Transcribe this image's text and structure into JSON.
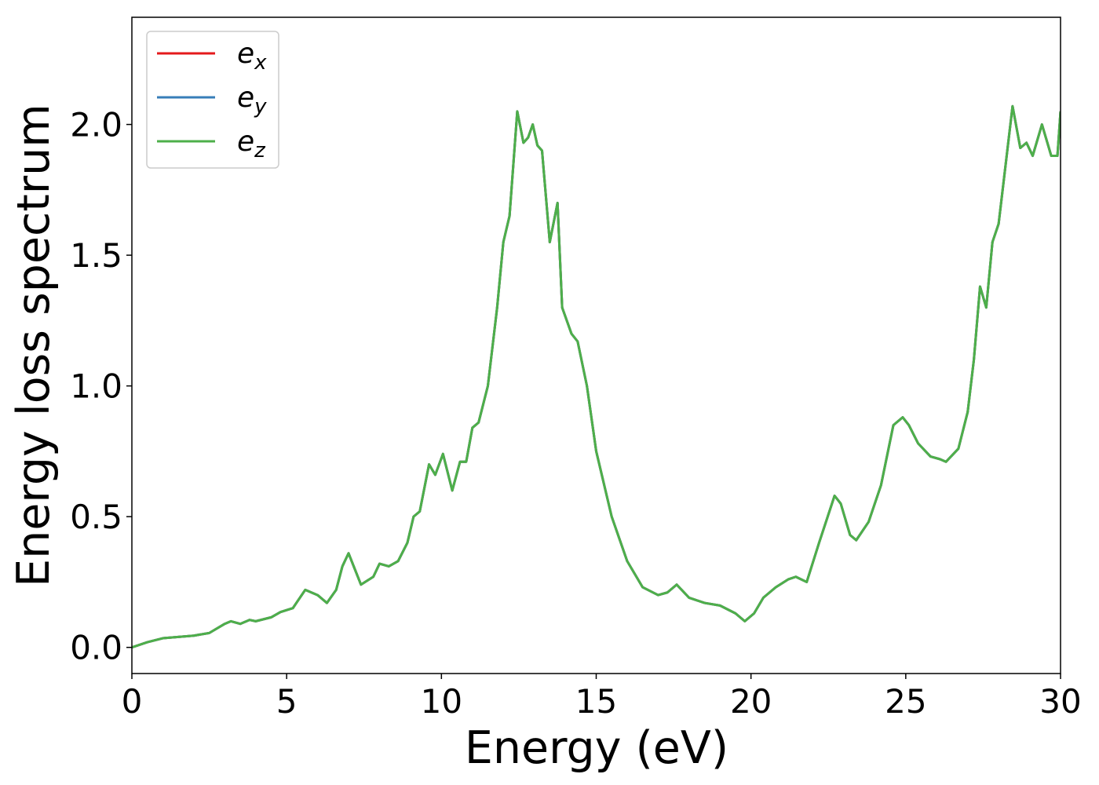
{
  "chart_data": {
    "type": "line",
    "xlabel": "Energy (eV)",
    "ylabel": "Energy loss spectrum",
    "x": [
      0,
      0.5,
      1,
      1.5,
      2,
      2.5,
      3,
      3.2,
      3.5,
      3.8,
      4,
      4.5,
      4.8,
      5.2,
      5.6,
      6,
      6.3,
      6.6,
      6.8,
      7,
      7.2,
      7.4,
      7.8,
      8,
      8.3,
      8.6,
      8.9,
      9.1,
      9.3,
      9.6,
      9.8,
      10.05,
      10.35,
      10.6,
      10.8,
      11,
      11.2,
      11.5,
      11.8,
      12,
      12.2,
      12.45,
      12.65,
      12.8,
      12.95,
      13.1,
      13.25,
      13.5,
      13.75,
      13.9,
      14.2,
      14.4,
      14.7,
      15,
      15.5,
      16,
      16.5,
      17,
      17.3,
      17.6,
      18,
      18.5,
      19,
      19.5,
      19.8,
      20.1,
      20.4,
      20.8,
      21.2,
      21.45,
      21.8,
      22.2,
      22.7,
      22.9,
      23.2,
      23.4,
      23.8,
      24.2,
      24.6,
      24.9,
      25.1,
      25.4,
      25.8,
      26.1,
      26.3,
      26.7,
      27,
      27.2,
      27.4,
      27.6,
      27.8,
      28,
      28.45,
      28.7,
      28.9,
      29.1,
      29.4,
      29.7,
      29.9,
      30
    ],
    "series": [
      {
        "name": "e_x",
        "color": "#e41a1c",
        "values": [
          0,
          0.02,
          0.035,
          0.04,
          0.045,
          0.055,
          0.09,
          0.1,
          0.09,
          0.105,
          0.1,
          0.115,
          0.135,
          0.15,
          0.22,
          0.2,
          0.17,
          0.22,
          0.31,
          0.36,
          0.3,
          0.24,
          0.27,
          0.32,
          0.31,
          0.33,
          0.4,
          0.5,
          0.52,
          0.7,
          0.66,
          0.74,
          0.6,
          0.71,
          0.71,
          0.84,
          0.86,
          1.0,
          1.3,
          1.55,
          1.65,
          2.05,
          1.93,
          1.95,
          2.0,
          1.92,
          1.9,
          1.55,
          1.7,
          1.3,
          1.2,
          1.17,
          1.0,
          0.75,
          0.5,
          0.33,
          0.23,
          0.2,
          0.21,
          0.24,
          0.19,
          0.17,
          0.16,
          0.13,
          0.1,
          0.13,
          0.19,
          0.23,
          0.26,
          0.27,
          0.25,
          0.4,
          0.58,
          0.55,
          0.43,
          0.41,
          0.48,
          0.62,
          0.85,
          0.88,
          0.85,
          0.78,
          0.73,
          0.72,
          0.71,
          0.76,
          0.9,
          1.1,
          1.38,
          1.3,
          1.55,
          1.62,
          2.07,
          1.91,
          1.93,
          1.88,
          2.0,
          1.88,
          1.88,
          2.05
        ]
      },
      {
        "name": "e_y",
        "color": "#377eb8",
        "values": [
          0,
          0.02,
          0.035,
          0.04,
          0.045,
          0.055,
          0.09,
          0.1,
          0.09,
          0.105,
          0.1,
          0.115,
          0.135,
          0.15,
          0.22,
          0.2,
          0.17,
          0.22,
          0.31,
          0.36,
          0.3,
          0.24,
          0.27,
          0.32,
          0.31,
          0.33,
          0.4,
          0.5,
          0.52,
          0.7,
          0.66,
          0.74,
          0.6,
          0.71,
          0.71,
          0.84,
          0.86,
          1.0,
          1.3,
          1.55,
          1.65,
          2.05,
          1.93,
          1.95,
          2.0,
          1.92,
          1.9,
          1.55,
          1.7,
          1.3,
          1.2,
          1.17,
          1.0,
          0.75,
          0.5,
          0.33,
          0.23,
          0.2,
          0.21,
          0.24,
          0.19,
          0.17,
          0.16,
          0.13,
          0.1,
          0.13,
          0.19,
          0.23,
          0.26,
          0.27,
          0.25,
          0.4,
          0.58,
          0.55,
          0.43,
          0.41,
          0.48,
          0.62,
          0.85,
          0.88,
          0.85,
          0.78,
          0.73,
          0.72,
          0.71,
          0.76,
          0.9,
          1.1,
          1.38,
          1.3,
          1.55,
          1.62,
          2.07,
          1.91,
          1.93,
          1.88,
          2.0,
          1.88,
          1.88,
          2.05
        ]
      },
      {
        "name": "e_z",
        "color": "#4daf4a",
        "values": [
          0,
          0.02,
          0.035,
          0.04,
          0.045,
          0.055,
          0.09,
          0.1,
          0.09,
          0.105,
          0.1,
          0.115,
          0.135,
          0.15,
          0.22,
          0.2,
          0.17,
          0.22,
          0.31,
          0.36,
          0.3,
          0.24,
          0.27,
          0.32,
          0.31,
          0.33,
          0.4,
          0.5,
          0.52,
          0.7,
          0.66,
          0.74,
          0.6,
          0.71,
          0.71,
          0.84,
          0.86,
          1.0,
          1.3,
          1.55,
          1.65,
          2.05,
          1.93,
          1.95,
          2.0,
          1.92,
          1.9,
          1.55,
          1.7,
          1.3,
          1.2,
          1.17,
          1.0,
          0.75,
          0.5,
          0.33,
          0.23,
          0.2,
          0.21,
          0.24,
          0.19,
          0.17,
          0.16,
          0.13,
          0.1,
          0.13,
          0.19,
          0.23,
          0.26,
          0.27,
          0.25,
          0.4,
          0.58,
          0.55,
          0.43,
          0.41,
          0.48,
          0.62,
          0.85,
          0.88,
          0.85,
          0.78,
          0.73,
          0.72,
          0.71,
          0.76,
          0.9,
          1.1,
          1.38,
          1.3,
          1.55,
          1.62,
          2.07,
          1.91,
          1.93,
          1.88,
          2.0,
          1.88,
          1.88,
          2.05
        ]
      }
    ],
    "xlim": [
      0,
      30
    ],
    "xticks": [
      0,
      5,
      10,
      15,
      20,
      25,
      30
    ],
    "ylim": [
      -0.1,
      2.41
    ],
    "yticks": [
      {
        "value": 0,
        "label": "0.0"
      },
      {
        "value": 0.5,
        "label": "0.5"
      },
      {
        "value": 1,
        "label": "1.0"
      },
      {
        "value": 1.5,
        "label": "1.5"
      },
      {
        "value": 2,
        "label": "2.0"
      }
    ],
    "legend": "upper left",
    "grid": false
  }
}
